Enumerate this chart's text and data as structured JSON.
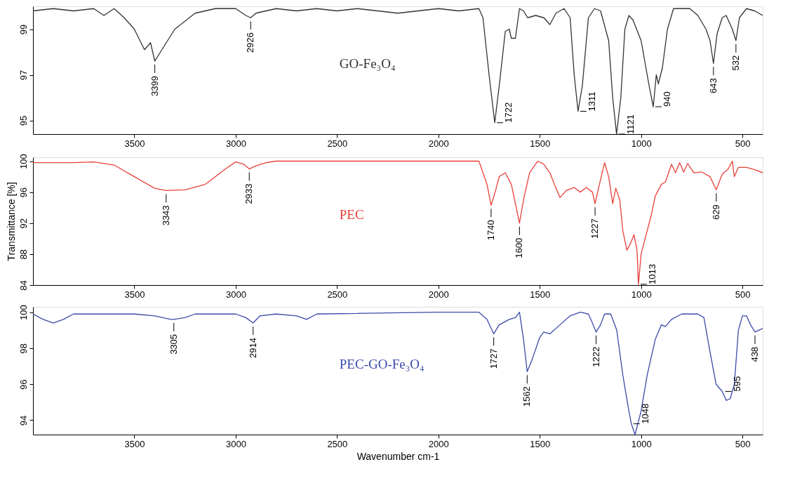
{
  "chart_data": [
    {
      "type": "line",
      "xlim": [
        4000,
        400
      ],
      "ylim": [
        94.4,
        100.0
      ],
      "xticks": [
        3500,
        3000,
        2500,
        2000,
        1500,
        1000,
        500
      ],
      "yticks": [
        95,
        97,
        99
      ],
      "grid": false,
      "x": [
        4000,
        3900,
        3800,
        3700,
        3650,
        3600,
        3550,
        3500,
        3450,
        3420,
        3399,
        3350,
        3300,
        3200,
        3100,
        3000,
        2950,
        2926,
        2900,
        2800,
        2700,
        2600,
        2500,
        2400,
        2300,
        2200,
        2100,
        2000,
        1900,
        1800,
        1780,
        1750,
        1722,
        1700,
        1670,
        1650,
        1640,
        1620,
        1600,
        1580,
        1560,
        1520,
        1480,
        1450,
        1420,
        1380,
        1350,
        1330,
        1311,
        1290,
        1260,
        1230,
        1200,
        1160,
        1140,
        1121,
        1100,
        1080,
        1060,
        1040,
        1000,
        960,
        940,
        925,
        915,
        895,
        870,
        840,
        800,
        760,
        720,
        680,
        660,
        643,
        625,
        600,
        580,
        550,
        532,
        515,
        480,
        440,
        400
      ],
      "series": [
        {
          "name": "GO-Fe₃O₄",
          "color": "#333333",
          "values": [
            99.8,
            99.9,
            99.8,
            99.9,
            99.6,
            99.9,
            99.5,
            99.0,
            98.1,
            98.4,
            97.6,
            98.3,
            99.0,
            99.7,
            99.9,
            99.9,
            99.6,
            99.5,
            99.7,
            99.9,
            99.8,
            99.9,
            99.8,
            99.9,
            99.8,
            99.7,
            99.8,
            99.9,
            99.8,
            99.9,
            99.5,
            97.0,
            94.9,
            96.5,
            98.9,
            99.0,
            98.6,
            98.6,
            99.9,
            99.8,
            99.5,
            99.6,
            99.5,
            99.2,
            99.7,
            99.9,
            99.5,
            97.0,
            95.4,
            96.5,
            99.5,
            99.9,
            99.8,
            98.5,
            96.0,
            94.4,
            96.0,
            99.0,
            99.6,
            99.4,
            98.5,
            96.5,
            95.6,
            97.0,
            96.6,
            97.3,
            99.0,
            99.9,
            99.9,
            99.9,
            99.6,
            99.0,
            98.5,
            97.5,
            98.8,
            99.5,
            99.6,
            99.0,
            98.5,
            99.5,
            99.9,
            99.8,
            99.6
          ]
        }
      ],
      "annotations": [
        {
          "text": "3399",
          "x": 3399,
          "y": 97.6
        },
        {
          "text": "2926",
          "x": 2926,
          "y": 99.5
        },
        {
          "text": "1722",
          "x": 1722,
          "y": 94.9
        },
        {
          "text": "1311",
          "x": 1311,
          "y": 95.4
        },
        {
          "text": "1121",
          "x": 1121,
          "y": 94.4
        },
        {
          "text": "940",
          "x": 940,
          "y": 95.6
        },
        {
          "text": "643",
          "x": 643,
          "y": 97.5
        },
        {
          "text": "532",
          "x": 532,
          "y": 98.5
        }
      ]
    },
    {
      "type": "line",
      "xlim": [
        4000,
        400
      ],
      "ylim": [
        84,
        100.5
      ],
      "xticks": [
        3500,
        3000,
        2500,
        2000,
        1500,
        1000,
        500
      ],
      "yticks": [
        84,
        88,
        92,
        96,
        100
      ],
      "grid": false,
      "ylabel": "Transmittance [%]",
      "x": [
        4000,
        3800,
        3700,
        3600,
        3500,
        3400,
        3343,
        3250,
        3150,
        3050,
        3000,
        2960,
        2933,
        2900,
        2850,
        2800,
        2500,
        2200,
        2000,
        1800,
        1760,
        1740,
        1720,
        1700,
        1670,
        1640,
        1600,
        1580,
        1550,
        1510,
        1480,
        1450,
        1420,
        1400,
        1370,
        1330,
        1300,
        1270,
        1240,
        1227,
        1210,
        1180,
        1160,
        1140,
        1125,
        1105,
        1090,
        1070,
        1050,
        1035,
        1020,
        1013,
        1000,
        980,
        950,
        930,
        900,
        880,
        850,
        830,
        810,
        790,
        770,
        740,
        700,
        660,
        629,
        600,
        570,
        550,
        540,
        520,
        480,
        440,
        400
      ],
      "series": [
        {
          "name": "PEC",
          "color": "#e8403a",
          "values": [
            99.8,
            99.8,
            99.9,
            99.5,
            98.0,
            96.5,
            96.2,
            96.3,
            97.0,
            99.0,
            99.9,
            99.6,
            99.0,
            99.4,
            99.8,
            100,
            100,
            100,
            100,
            100,
            97.0,
            94.3,
            96.0,
            98.0,
            98.5,
            97.0,
            92.0,
            95.0,
            98.5,
            100,
            99.6,
            98.5,
            96.5,
            95.3,
            96.2,
            96.6,
            96.0,
            96.6,
            96.0,
            94.5,
            96.5,
            99.8,
            98.0,
            94.5,
            96.5,
            95.0,
            91.0,
            88.5,
            89.5,
            90.5,
            88.5,
            84.1,
            88.0,
            90.0,
            93.0,
            95.5,
            97.0,
            97.3,
            99.6,
            98.5,
            99.8,
            98.6,
            99.7,
            98.5,
            98.6,
            98.0,
            96.3,
            98.3,
            99.0,
            100.0,
            98.0,
            99.2,
            99.2,
            98.9,
            98.5
          ]
        }
      ],
      "annotations": [
        {
          "text": "3343",
          "x": 3343,
          "y": 96.2
        },
        {
          "text": "2933",
          "x": 2933,
          "y": 99.0
        },
        {
          "text": "1740",
          "x": 1740,
          "y": 94.3
        },
        {
          "text": "1600",
          "x": 1600,
          "y": 92.0
        },
        {
          "text": "1227",
          "x": 1227,
          "y": 94.5
        },
        {
          "text": "1013",
          "x": 1013,
          "y": 84.1
        },
        {
          "text": "629",
          "x": 629,
          "y": 96.3
        }
      ]
    },
    {
      "type": "line",
      "xlim": [
        4000,
        400
      ],
      "ylim": [
        93.2,
        100.3
      ],
      "xticks": [
        3500,
        3000,
        2500,
        2000,
        1500,
        1000,
        500
      ],
      "yticks": [
        94,
        96,
        98,
        100
      ],
      "grid": false,
      "xlabel": "Wavenumber cm-1",
      "x": [
        4000,
        3950,
        3900,
        3850,
        3800,
        3600,
        3500,
        3400,
        3320,
        3305,
        3250,
        3200,
        3000,
        2950,
        2914,
        2880,
        2800,
        2700,
        2650,
        2600,
        2000,
        1800,
        1760,
        1727,
        1700,
        1650,
        1620,
        1600,
        1580,
        1562,
        1540,
        1500,
        1480,
        1450,
        1400,
        1350,
        1300,
        1260,
        1240,
        1222,
        1200,
        1180,
        1150,
        1120,
        1090,
        1060,
        1048,
        1030,
        1000,
        970,
        930,
        900,
        880,
        850,
        800,
        720,
        690,
        660,
        630,
        600,
        580,
        560,
        540,
        520,
        500,
        480,
        460,
        438,
        420,
        400
      ],
      "series": [
        {
          "name": "PEC-GO-Fe₃O₄",
          "color": "#3b4aa8",
          "values": [
            99.9,
            99.6,
            99.4,
            99.6,
            99.9,
            99.9,
            99.9,
            99.8,
            99.6,
            99.6,
            99.7,
            99.9,
            99.9,
            99.7,
            99.4,
            99.8,
            99.9,
            99.8,
            99.6,
            99.9,
            100,
            100,
            99.6,
            98.8,
            99.3,
            99.6,
            99.7,
            100,
            98.5,
            96.7,
            97.3,
            98.6,
            98.9,
            98.8,
            99.3,
            99.8,
            100,
            99.9,
            99.4,
            98.9,
            99.3,
            99.9,
            99.9,
            99.0,
            96.5,
            94.5,
            93.8,
            93.2,
            94.5,
            96.5,
            98.5,
            99.3,
            99.2,
            99.6,
            99.9,
            99.9,
            99.7,
            97.8,
            96.0,
            95.6,
            95.1,
            95.2,
            96.0,
            99.0,
            99.8,
            99.8,
            99.3,
            98.9,
            99.0,
            99.1
          ]
        }
      ],
      "annotations": [
        {
          "text": "3305",
          "x": 3305,
          "y": 99.6
        },
        {
          "text": "2914",
          "x": 2914,
          "y": 99.4
        },
        {
          "text": "1727",
          "x": 1727,
          "y": 98.8
        },
        {
          "text": "1562",
          "x": 1562,
          "y": 96.7
        },
        {
          "text": "1222",
          "x": 1222,
          "y": 98.9
        },
        {
          "text": "1048",
          "x": 1048,
          "y": 93.8
        },
        {
          "text": "595",
          "x": 595,
          "y": 95.6
        },
        {
          "text": "438",
          "x": 438,
          "y": 98.9
        }
      ]
    }
  ]
}
